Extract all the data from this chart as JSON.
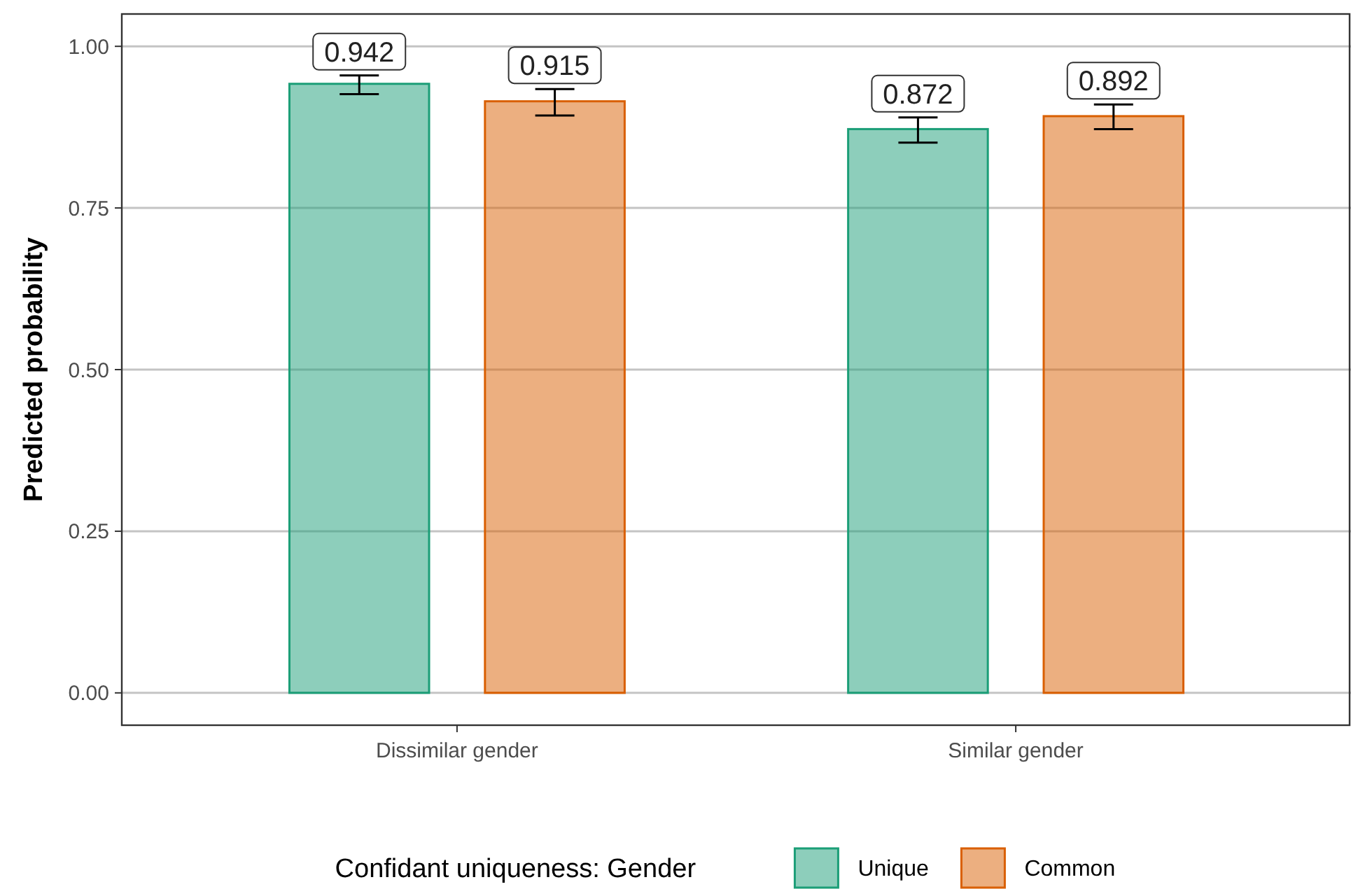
{
  "chart_data": {
    "type": "bar",
    "ylabel": "Predicted probability",
    "legend_title": "Confidant uniqueness: Gender",
    "categories": [
      "Dissimilar gender",
      "Similar gender"
    ],
    "series": [
      {
        "name": "Unique",
        "color": "#1b9e77",
        "values": [
          0.942,
          0.872
        ],
        "errors": [
          [
            0.926,
            0.955
          ],
          [
            0.851,
            0.89
          ]
        ]
      },
      {
        "name": "Common",
        "color": "#d95f02",
        "values": [
          0.915,
          0.892
        ],
        "errors": [
          [
            0.893,
            0.934
          ],
          [
            0.872,
            0.91
          ]
        ]
      }
    ],
    "ylim": [
      -0.05,
      1.05
    ],
    "yticks": [
      {
        "value": 0,
        "label": "0.00"
      },
      {
        "value": 0.25,
        "label": "0.25"
      },
      {
        "value": 0.5,
        "label": "0.50"
      },
      {
        "value": 0.75,
        "label": "0.75"
      },
      {
        "value": 1,
        "label": "1.00"
      }
    ],
    "grid": "y",
    "legend": "bottom",
    "data_labels": true
  }
}
